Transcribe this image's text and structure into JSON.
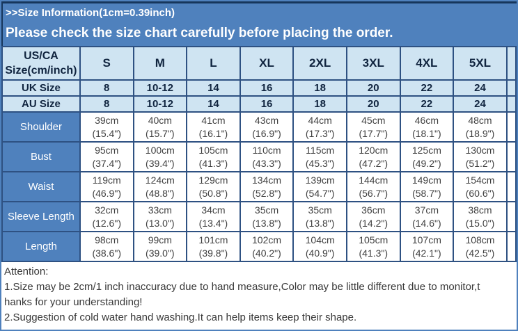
{
  "banner": {
    "line1": ">>Size Information(1cm=0.39inch)",
    "line2": "Please check the size chart carefully before placing the order."
  },
  "table": {
    "corner": [
      "US/CA",
      "Size(cm/inch)"
    ],
    "sizes": [
      "S",
      "M",
      "L",
      "XL",
      "2XL",
      "3XL",
      "4XL",
      "5XL"
    ],
    "uk": {
      "label": "UK Size",
      "values": [
        "8",
        "10-12",
        "14",
        "16",
        "18",
        "20",
        "22",
        "24"
      ]
    },
    "au": {
      "label": "AU Size",
      "values": [
        "8",
        "10-12",
        "14",
        "16",
        "18",
        "20",
        "22",
        "24"
      ]
    },
    "rows": [
      {
        "label": "Shoulder",
        "cm": [
          "39cm",
          "40cm",
          "41cm",
          "43cm",
          "44cm",
          "45cm",
          "46cm",
          "48cm"
        ],
        "inch": [
          "(15.4\")",
          "(15.7\")",
          "(16.1\")",
          "(16.9\")",
          "(17.3\")",
          "(17.7\")",
          "(18.1\")",
          "(18.9\")"
        ]
      },
      {
        "label": "Bust",
        "cm": [
          "95cm",
          "100cm",
          "105cm",
          "110cm",
          "115cm",
          "120cm",
          "125cm",
          "130cm"
        ],
        "inch": [
          "(37.4\")",
          "(39.4\")",
          "(41.3\")",
          "(43.3\")",
          "(45.3\")",
          "(47.2\")",
          "(49.2\")",
          "(51.2\")"
        ]
      },
      {
        "label": "Waist",
        "cm": [
          "119cm",
          "124cm",
          "129cm",
          "134cm",
          "139cm",
          "144cm",
          "149cm",
          "154cm"
        ],
        "inch": [
          "(46.9\")",
          "(48.8\")",
          "(50.8\")",
          "(52.8\")",
          "(54.7\")",
          "(56.7\")",
          "(58.7\")",
          "(60.6\")"
        ]
      },
      {
        "label": "Sleeve Length",
        "cm": [
          "32cm",
          "33cm",
          "34cm",
          "35cm",
          "35cm",
          "36cm",
          "37cm",
          "38cm"
        ],
        "inch": [
          "(12.6\")",
          "(13.0\")",
          "(13.4\")",
          "(13.8\")",
          "(13.8\")",
          "(14.2\")",
          "(14.6\")",
          "(15.0\")"
        ]
      },
      {
        "label": "Length",
        "cm": [
          "98cm",
          "99cm",
          "101cm",
          "102cm",
          "104cm",
          "105cm",
          "107cm",
          "108cm"
        ],
        "inch": [
          "(38.6\")",
          "(39.0\")",
          "(39.8\")",
          "(40.2\")",
          "(40.9\")",
          "(41.3\")",
          "(42.1\")",
          "(42.5\")"
        ]
      }
    ]
  },
  "attention": {
    "title": "Attention:",
    "lines": [
      "1.Size may be 2cm/1 inch inaccuracy due to hand measure,Color may be little different due to monitor,t",
      "hanks for your understanding!",
      "2.Suggestion of cold water hand washing.It can help items keep their shape."
    ]
  },
  "colors": {
    "steel_blue": "#4f81bd",
    "light_blue": "#cfe4f2",
    "dark_navy_border": "#16365c",
    "grid_border": "#2e5182",
    "header_text": "#10243f",
    "body_text": "#3f3f3f"
  }
}
